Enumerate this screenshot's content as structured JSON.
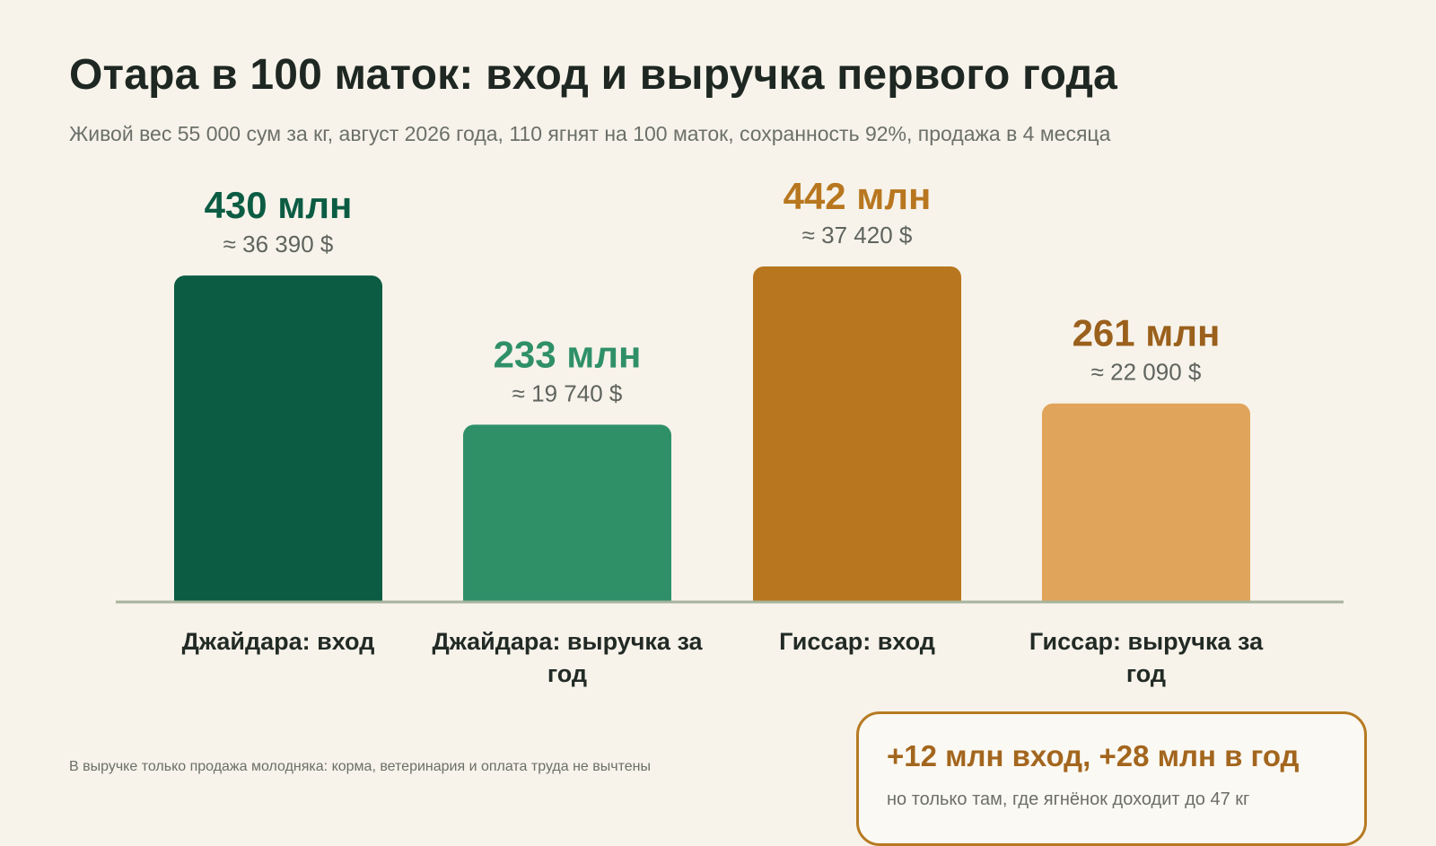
{
  "header": {
    "title": "Отара в 100 маток: вход и выручка первого года",
    "subtitle": "Живой вес 55 000 сум за кг, август 2026 года, 110 ягнят на 100 маток, сохранность 92%, продажа в 4 месяца"
  },
  "chart_data": {
    "type": "bar",
    "categories": [
      "Джайдара: вход",
      "Джайдара: выручка за год",
      "Гиссар: вход",
      "Гиссар: выручка за год"
    ],
    "values": [
      430,
      233,
      442,
      261
    ],
    "value_labels": [
      "430 млн",
      "233 млн",
      "442 млн",
      "261 млн"
    ],
    "usd_labels": [
      "≈ 36 390 $",
      "≈ 19 740 $",
      "≈ 37 420 $",
      "≈ 22 090 $"
    ],
    "category_lines": [
      [
        "Джайдара: вход"
      ],
      [
        "Джайдара: выручка за",
        "год"
      ],
      [
        "Гиссар: вход"
      ],
      [
        "Гиссар: выручка за",
        "год"
      ]
    ],
    "colors": [
      "#0b5c43",
      "#2f9068",
      "#b8771f",
      "#e1a45b"
    ],
    "label_colors": [
      "#0b5c43",
      "#2f9068",
      "#b8771f",
      "#9a601c"
    ],
    "ylim": [
      0,
      442
    ],
    "grid": false,
    "legend": "none",
    "title": "Отара в 100 маток: вход и выручка первого года",
    "xlabel": "",
    "ylabel": ""
  },
  "footnote": "В выручке только продажа молодняка: корма, ветеринария и оплата труда не вычтены",
  "callout": {
    "title": "+12 млн вход, +28 млн в год",
    "subtitle": "но только там, где ягнёнок доходит до 47 кг"
  },
  "colors": {
    "background": "#f7f3ea",
    "axis": "#a7b39c",
    "callout_border": "#b67a22"
  }
}
